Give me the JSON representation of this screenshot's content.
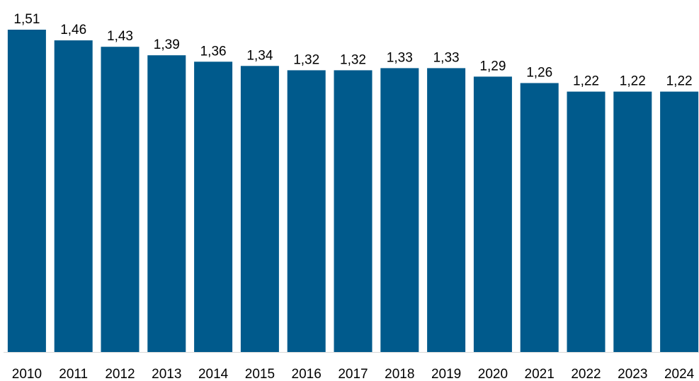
{
  "chart_data": {
    "type": "bar",
    "categories": [
      "2010",
      "2011",
      "2012",
      "2013",
      "2014",
      "2015",
      "2016",
      "2017",
      "2018",
      "2019",
      "2020",
      "2021",
      "2022",
      "2023",
      "2024"
    ],
    "values": [
      1.51,
      1.46,
      1.43,
      1.39,
      1.36,
      1.34,
      1.32,
      1.32,
      1.33,
      1.33,
      1.29,
      1.26,
      1.22,
      1.22,
      1.22
    ],
    "data_labels": [
      "1,51",
      "1,46",
      "1,43",
      "1,39",
      "1,36",
      "1,34",
      "1,32",
      "1,32",
      "1,33",
      "1,33",
      "1,29",
      "1,26",
      "1,22",
      "1,22",
      "1,22"
    ],
    "title": "",
    "xlabel": "",
    "ylabel": "",
    "ylim": [
      0,
      1.53
    ],
    "grid": false,
    "legend": "none",
    "bar_color": "#005A8C",
    "axis_color": "#D9D9D9"
  }
}
